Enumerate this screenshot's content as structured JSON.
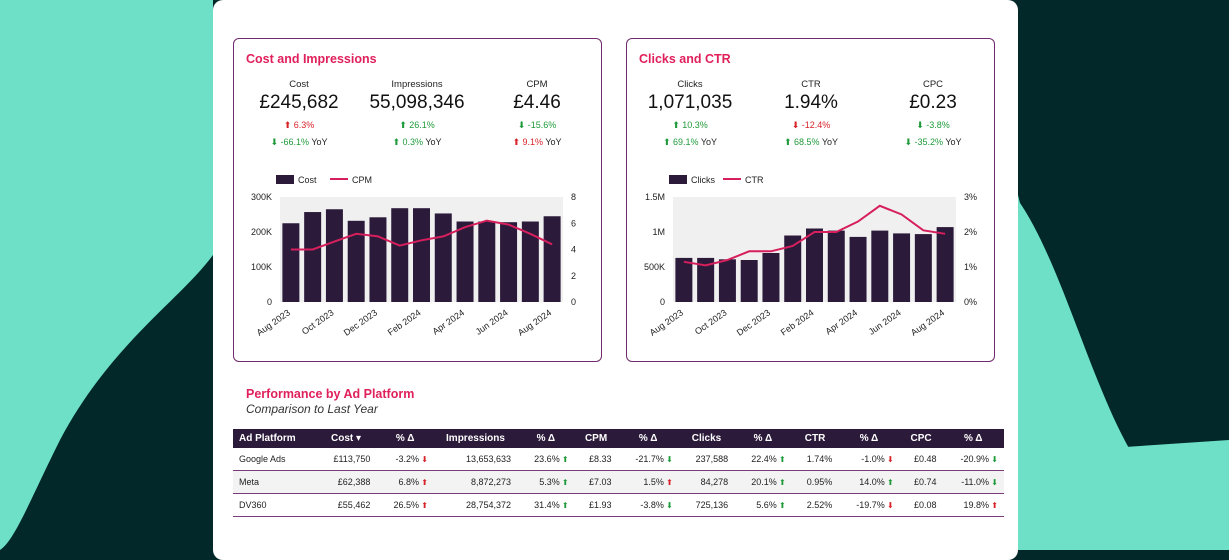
{
  "colors": {
    "dark_bg": "#02282a",
    "accent_bg": "#6ee0c7",
    "panel_border": "#6f2b6d",
    "title": "#e0205b",
    "bar": "#2b1a3a",
    "line": "#d61f5c",
    "positive": "#1f9a3a",
    "negative": "#d8232a"
  },
  "cost_panel": {
    "title": "Cost and Impressions",
    "kpis": [
      {
        "label": "Cost",
        "value": "£245,682",
        "delta": "6.3%",
        "delta_dir": "up",
        "delta_good": false,
        "yoy": "-66.1%",
        "yoy_dir": "down",
        "yoy_good": true,
        "yoy_suffix": "YoY"
      },
      {
        "label": "Impressions",
        "value": "55,098,346",
        "delta": "26.1%",
        "delta_dir": "up",
        "delta_good": true,
        "yoy": "0.3%",
        "yoy_dir": "up",
        "yoy_good": true,
        "yoy_suffix": "YoY"
      },
      {
        "label": "CPM",
        "value": "£4.46",
        "delta": "-15.6%",
        "delta_dir": "down",
        "delta_good": true,
        "yoy": "9.1%",
        "yoy_dir": "up",
        "yoy_good": false,
        "yoy_suffix": "YoY"
      }
    ]
  },
  "clicks_panel": {
    "title": "Clicks and CTR",
    "kpis": [
      {
        "label": "Clicks",
        "value": "1,071,035",
        "delta": "10.3%",
        "delta_dir": "up",
        "delta_good": true,
        "yoy": "69.1%",
        "yoy_dir": "up",
        "yoy_good": true,
        "yoy_suffix": "YoY"
      },
      {
        "label": "CTR",
        "value": "1.94%",
        "delta": "-12.4%",
        "delta_dir": "down",
        "delta_good": false,
        "yoy": "68.5%",
        "yoy_dir": "up",
        "yoy_good": true,
        "yoy_suffix": "YoY"
      },
      {
        "label": "CPC",
        "value": "£0.23",
        "delta": "-3.8%",
        "delta_dir": "down",
        "delta_good": true,
        "yoy": "-35.2%",
        "yoy_dir": "down",
        "yoy_good": true,
        "yoy_suffix": "YoY"
      }
    ]
  },
  "chart_data": [
    {
      "type": "bar",
      "legend": [
        "Cost",
        "CPM"
      ],
      "categories": [
        "Aug 2023",
        "Sep 2023",
        "Oct 2023",
        "Nov 2023",
        "Dec 2023",
        "Jan 2024",
        "Feb 2024",
        "Mar 2024",
        "Apr 2024",
        "May 2024",
        "Jun 2024",
        "Jul 2024",
        "Aug 2024"
      ],
      "tick_labels": [
        "Aug 2023",
        "Oct 2023",
        "Dec 2023",
        "Feb 2024",
        "Apr 2024",
        "Jun 2024",
        "Aug 2024"
      ],
      "series": [
        {
          "name": "Cost",
          "axis": "left",
          "type": "bar",
          "values": [
            225000,
            257000,
            265000,
            232000,
            242000,
            268000,
            268000,
            253000,
            230000,
            230000,
            228000,
            230000,
            245000
          ]
        },
        {
          "name": "CPM",
          "axis": "right",
          "type": "line",
          "values": [
            4.0,
            4.0,
            4.6,
            5.2,
            5.0,
            4.3,
            4.7,
            5.0,
            5.7,
            6.2,
            5.9,
            5.2,
            4.4
          ]
        }
      ],
      "y_left": {
        "ticks": [
          "0",
          "100K",
          "200K",
          "300K"
        ],
        "range": [
          0,
          300000
        ]
      },
      "y_right": {
        "ticks": [
          "0",
          "2",
          "4",
          "6",
          "8"
        ],
        "range": [
          0,
          8
        ]
      }
    },
    {
      "type": "bar",
      "legend": [
        "Clicks",
        "CTR"
      ],
      "categories": [
        "Aug 2023",
        "Sep 2023",
        "Oct 2023",
        "Nov 2023",
        "Dec 2023",
        "Jan 2024",
        "Feb 2024",
        "Mar 2024",
        "Apr 2024",
        "May 2024",
        "Jun 2024",
        "Jul 2024",
        "Aug 2024"
      ],
      "tick_labels": [
        "Aug 2023",
        "Oct 2023",
        "Dec 2023",
        "Feb 2024",
        "Apr 2024",
        "Jun 2024",
        "Aug 2024"
      ],
      "series": [
        {
          "name": "Clicks",
          "axis": "left",
          "type": "bar",
          "values": [
            630000,
            630000,
            610000,
            600000,
            700000,
            950000,
            1050000,
            1020000,
            930000,
            1020000,
            980000,
            970000,
            1070000
          ]
        },
        {
          "name": "CTR",
          "axis": "right",
          "type": "line",
          "values": [
            1.15,
            1.05,
            1.2,
            1.45,
            1.45,
            1.6,
            2.0,
            2.0,
            2.3,
            2.75,
            2.5,
            2.05,
            1.95
          ]
        }
      ],
      "y_left": {
        "ticks": [
          "0",
          "500K",
          "1M",
          "1.5M"
        ],
        "range": [
          0,
          1500000
        ]
      },
      "y_right": {
        "ticks": [
          "0%",
          "1%",
          "2%",
          "3%"
        ],
        "range": [
          0,
          3
        ]
      }
    }
  ],
  "performance": {
    "title": "Performance by Ad Platform",
    "subtitle": "Comparison to Last Year",
    "headers": [
      "Ad Platform",
      "Cost ▾",
      "% Δ",
      "Impressions",
      "% Δ",
      "CPM",
      "% Δ",
      "Clicks",
      "% Δ",
      "CTR",
      "% Δ",
      "CPC",
      "% Δ"
    ],
    "rows": [
      [
        "Google Ads",
        "£113,750",
        "-3.2%",
        "13,653,633",
        "23.6%",
        "£8.33",
        "-21.7%",
        "237,588",
        "22.4%",
        "1.74%",
        "-1.0%",
        "£0.48",
        "-20.9%"
      ],
      [
        "Meta",
        "£62,388",
        "6.8%",
        "8,872,273",
        "5.3%",
        "£7.03",
        "1.5%",
        "84,278",
        "20.1%",
        "0.95%",
        "14.0%",
        "£0.74",
        "-11.0%"
      ],
      [
        "DV360",
        "£55,462",
        "26.5%",
        "28,754,372",
        "31.4%",
        "£1.93",
        "-3.8%",
        "725,136",
        "5.6%",
        "2.52%",
        "-19.7%",
        "£0.08",
        "19.8%"
      ]
    ],
    "arrows": [
      [
        "",
        "",
        "down",
        "",
        "up",
        "",
        "down",
        "",
        "up",
        "",
        "down",
        "",
        "down"
      ],
      [
        "",
        "",
        "up",
        "",
        "up",
        "",
        "up",
        "",
        "up",
        "",
        "up",
        "",
        "down"
      ],
      [
        "",
        "",
        "up",
        "",
        "up",
        "",
        "down",
        "",
        "up",
        "",
        "down",
        "",
        "up"
      ]
    ],
    "arrow_good": [
      [
        null,
        null,
        false,
        null,
        true,
        null,
        true,
        null,
        true,
        null,
        false,
        null,
        true
      ],
      [
        null,
        null,
        false,
        null,
        true,
        null,
        false,
        null,
        true,
        null,
        true,
        null,
        true
      ],
      [
        null,
        null,
        false,
        null,
        true,
        null,
        true,
        null,
        true,
        null,
        false,
        null,
        false
      ]
    ]
  }
}
